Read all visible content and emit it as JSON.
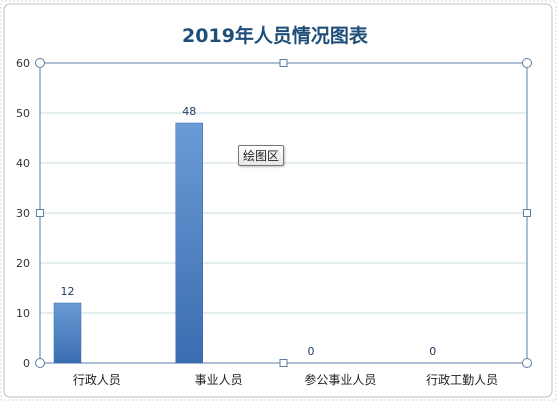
{
  "chart_data": {
    "type": "bar",
    "title": "2019年人员情况图表",
    "categories": [
      "行政人员",
      "事业人员",
      "参公事业人员",
      "行政工勤人员"
    ],
    "values": [
      12,
      48,
      0,
      0
    ],
    "data_labels": [
      "12",
      "48",
      "0",
      "0"
    ],
    "ylim": [
      0,
      60
    ],
    "yticks": [
      0,
      10,
      20,
      30,
      40,
      50,
      60
    ],
    "ytick_labels": [
      "0",
      "10",
      "20",
      "30",
      "40",
      "50",
      "60"
    ],
    "grid": true,
    "bar_color": "#4a7ebf"
  },
  "tooltip": {
    "label": "绘图区"
  }
}
